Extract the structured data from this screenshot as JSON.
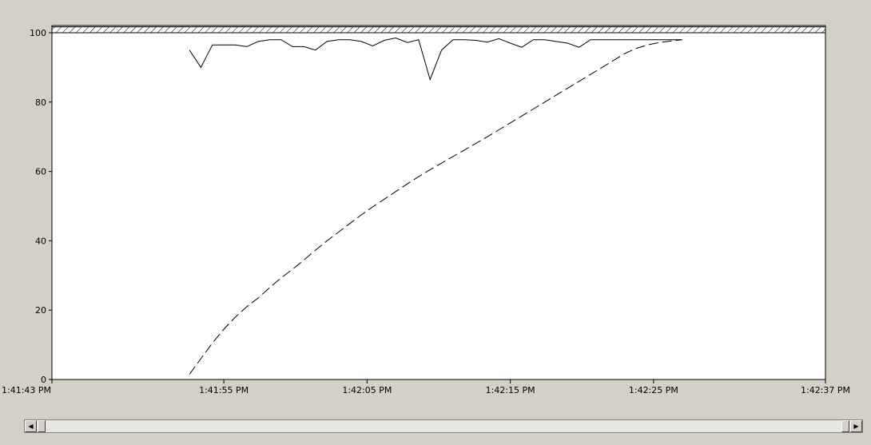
{
  "chart_data": {
    "type": "line",
    "title": "",
    "xlabel": "",
    "ylabel": "",
    "x_tick_labels": [
      "1:41:43 PM",
      "1:41:55 PM",
      "1:42:05 PM",
      "1:42:15 PM",
      "1:42:25 PM",
      "1:42:37 PM"
    ],
    "x_tick_seconds": [
      0,
      12,
      22,
      32,
      42,
      54
    ],
    "y_ticks": [
      0,
      20,
      40,
      60,
      80,
      100
    ],
    "xlim_seconds": [
      0,
      54
    ],
    "ylim": [
      0,
      100
    ],
    "grid": false,
    "legend": "none",
    "reference_band": {
      "from": 100,
      "to": 101.7,
      "style": "hatched"
    },
    "series": [
      {
        "style": "solid",
        "color": "#000000",
        "x_seconds": [
          9.6,
          10.4,
          11.2,
          12.0,
          12.8,
          13.6,
          14.4,
          15.2,
          16.0,
          16.8,
          17.6,
          18.4,
          19.2,
          20.0,
          20.8,
          21.6,
          22.4,
          23.2,
          24.0,
          24.8,
          25.6,
          26.4,
          27.2,
          28.0,
          28.8,
          29.6,
          30.4,
          31.2,
          32.0,
          32.8,
          33.6,
          34.4,
          35.2,
          36.0,
          36.8,
          37.6,
          38.4,
          39.2,
          40.0,
          40.8,
          41.6,
          42.4,
          43.2,
          44.0
        ],
        "values": [
          95,
          90,
          96.5,
          96.5,
          96.5,
          96,
          97.5,
          98,
          98,
          96,
          96,
          95,
          97.5,
          98,
          98,
          97.5,
          96.2,
          97.8,
          98.5,
          97.2,
          98,
          86.5,
          95,
          98,
          98,
          97.8,
          97.3,
          98.3,
          97,
          95.8,
          98,
          98,
          97.5,
          97,
          95.8,
          98,
          98,
          98,
          98,
          98,
          98,
          98,
          98,
          98
        ]
      },
      {
        "style": "dashed",
        "color": "#000000",
        "x_seconds": [
          9.6,
          10.4,
          11.2,
          12.0,
          12.8,
          13.6,
          14.4,
          15.2,
          16.0,
          16.8,
          17.6,
          18.4,
          19.2,
          20.0,
          20.8,
          21.6,
          22.4,
          23.2,
          24.0,
          24.8,
          25.6,
          26.4,
          27.2,
          28.0,
          28.8,
          29.6,
          30.4,
          31.2,
          32.0,
          32.8,
          33.6,
          34.4,
          35.2,
          36.0,
          36.8,
          37.6,
          38.4,
          39.2,
          40.0,
          40.8,
          41.6,
          42.4,
          43.2,
          44.0
        ],
        "values": [
          1.5,
          6,
          10.5,
          14.5,
          18,
          21,
          23.5,
          26.5,
          29.3,
          31.8,
          34.5,
          37.3,
          40,
          42.5,
          45,
          47.5,
          49.8,
          52,
          54.2,
          56.4,
          58.5,
          60.5,
          62.4,
          64.3,
          66.2,
          68.1,
          70,
          72,
          74,
          76,
          78,
          80,
          82,
          84,
          86,
          88,
          90,
          92,
          94,
          95.5,
          96.5,
          97.2,
          97.6,
          98
        ]
      }
    ]
  },
  "scrollbar": {
    "left_arrow": "◀",
    "right_arrow": "▶"
  }
}
